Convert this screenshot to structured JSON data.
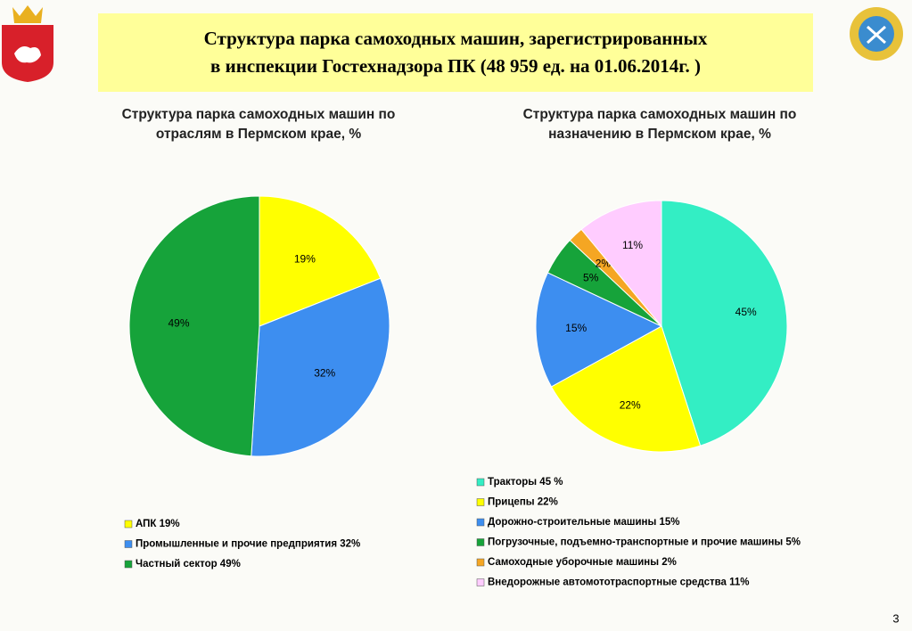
{
  "header": {
    "title_lines": [
      "Структура парка самоходных машин, зарегистрированных",
      "в инспекции Гостехнадзора ПК (48 959 ед. на 01.06.2014г. )"
    ]
  },
  "page_number": "3",
  "chart_data": [
    {
      "type": "pie",
      "title": [
        "Структура парка самоходных машин по",
        "отраслям в Пермском крае, %"
      ],
      "categories": [
        "АПК 19%",
        "Промышленные и прочие предприятия 32%",
        "Частный сектор 49%"
      ],
      "values": [
        19,
        32,
        49
      ],
      "value_labels": [
        "19%",
        "32%",
        "49%"
      ],
      "colors": [
        "#ffff00",
        "#3d8ef0",
        "#16a33a"
      ]
    },
    {
      "type": "pie",
      "title": [
        "Структура парка самоходных машин по",
        "назначению в Пермском крае, %"
      ],
      "categories": [
        "Тракторы  45 %",
        "Прицепы  22%",
        "Дорожно-строительные машины  15%",
        "Погрузочные, подъемно-транспортные и прочие машины  5%",
        "Самоходные уборочные машины  2%",
        "Внедорожные автомототраспортные средства  11%"
      ],
      "values": [
        45,
        22,
        15,
        5,
        2,
        11
      ],
      "value_labels": [
        "45%",
        "22%",
        "15%",
        "5%",
        "2%",
        "11%"
      ],
      "colors": [
        "#33eec4",
        "#ffff00",
        "#3d8ef0",
        "#16a33a",
        "#f5a623",
        "#ffccff"
      ]
    }
  ]
}
